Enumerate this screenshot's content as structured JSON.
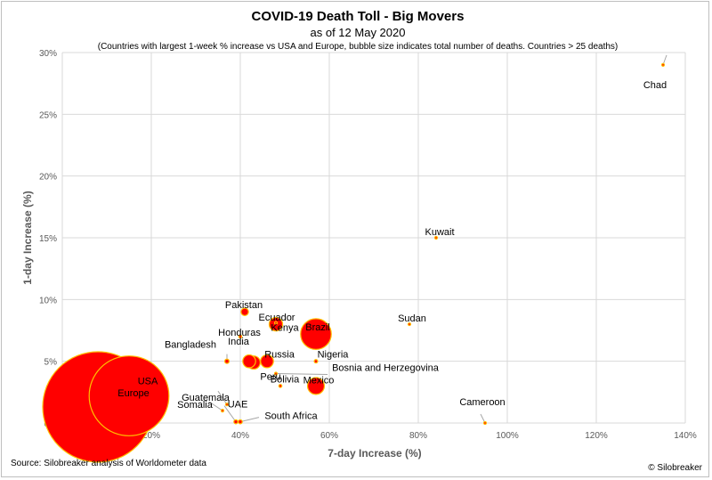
{
  "chart_data": {
    "type": "scatter",
    "title": "COVID-19 Death Toll - Big Movers",
    "subtitle": "as of 12 May 2020",
    "note": "(Countries with largest 1-week % increase vs USA and Europe, bubble size indicates total number of deaths. Countries > 25 deaths)",
    "xlabel": "7-day Increase (%)",
    "ylabel": "1-day Increase (%)",
    "xlim": [
      0,
      140
    ],
    "ylim": [
      0,
      30
    ],
    "x_ticks": [
      "0%",
      "20%",
      "40%",
      "60%",
      "80%",
      "100%",
      "120%",
      "140%"
    ],
    "y_ticks": [
      "0%",
      "5%",
      "10%",
      "15%",
      "20%",
      "25%",
      "30%"
    ],
    "grid": true,
    "colors": {
      "bubble_fill": "#ff0000",
      "bubble_edge": "#ffc000",
      "leader": "#a6a6a6"
    },
    "points": [
      {
        "name": "Europe",
        "x": 8,
        "y": 1.3,
        "size": 155000
      },
      {
        "name": "USA",
        "x": 15,
        "y": 2.2,
        "size": 81000
      },
      {
        "name": "Brazil",
        "x": 57,
        "y": 7.2,
        "size": 12000
      },
      {
        "name": "Mexico",
        "x": 57,
        "y": 3,
        "size": 3600
      },
      {
        "name": "Ecuador",
        "x": 48,
        "y": 8,
        "size": 2300
      },
      {
        "name": "Peru",
        "x": 42,
        "y": 5,
        "size": 2100
      },
      {
        "name": "Russia",
        "x": 46,
        "y": 5,
        "size": 2100
      },
      {
        "name": "India",
        "x": 43,
        "y": 4.9,
        "size": 2200
      },
      {
        "name": "Pakistan",
        "x": 41,
        "y": 9,
        "size": 700
      },
      {
        "name": "Kenya",
        "x": 48,
        "y": 8.1,
        "size": 45
      },
      {
        "name": "Honduras",
        "x": 40,
        "y": 7,
        "size": 120
      },
      {
        "name": "Bangladesh",
        "x": 37,
        "y": 5,
        "size": 240
      },
      {
        "name": "Nigeria",
        "x": 57,
        "y": 5,
        "size": 150
      },
      {
        "name": "Bosnia and Herzegovina",
        "x": 48,
        "y": 4,
        "size": 50
      },
      {
        "name": "Bolivia",
        "x": 49,
        "y": 3,
        "size": 120
      },
      {
        "name": "Sudan",
        "x": 78,
        "y": 8,
        "size": 50
      },
      {
        "name": "Kuwait",
        "x": 84,
        "y": 15,
        "size": 50
      },
      {
        "name": "Chad",
        "x": 135,
        "y": 29,
        "size": 40
      },
      {
        "name": "Cameroon",
        "x": 95,
        "y": 0,
        "size": 60
      },
      {
        "name": "Guatemala",
        "x": 37,
        "y": 1.5,
        "size": 30
      },
      {
        "name": "Somalia",
        "x": 36,
        "y": 1,
        "size": 50
      },
      {
        "name": "UAE",
        "x": 39,
        "y": 0.1,
        "size": 200
      },
      {
        "name": "South Africa",
        "x": 40,
        "y": 0.1,
        "size": 200
      }
    ]
  },
  "footer": {
    "source": "Source: Silobreaker analysis of Worldometer data",
    "credit": "© Silobreaker"
  }
}
